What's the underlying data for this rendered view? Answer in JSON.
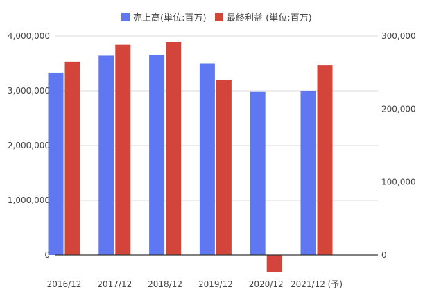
{
  "chart_data": {
    "type": "bar",
    "categories": [
      "2016/12",
      "2017/12",
      "2018/12",
      "2019/12",
      "2020/12",
      "2021/12 (予)"
    ],
    "series": [
      {
        "name": "売上高(単位:百万)",
        "axis": "left",
        "color": "#5f78f2",
        "values": [
          3330000,
          3640000,
          3650000,
          3500000,
          2990000,
          3000000
        ]
      },
      {
        "name": "最終利益 (単位:百万)",
        "axis": "right",
        "color": "#d3443b",
        "values": [
          265000,
          288000,
          292000,
          240000,
          -23000,
          260000
        ]
      }
    ],
    "left_axis": {
      "min": 0,
      "max": 4000000,
      "ticks": [
        0,
        1000000,
        2000000,
        3000000,
        4000000
      ],
      "tick_labels": [
        "0",
        "1,000,000",
        "2,000,000",
        "3,000,000",
        "4,000,000"
      ]
    },
    "right_axis": {
      "min": 0,
      "max": 300000,
      "ticks": [
        0,
        100000,
        200000,
        300000
      ],
      "tick_labels": [
        "0",
        "100,000",
        "200,000",
        "300,000"
      ]
    },
    "grid": true,
    "legend_position": "top-center"
  }
}
